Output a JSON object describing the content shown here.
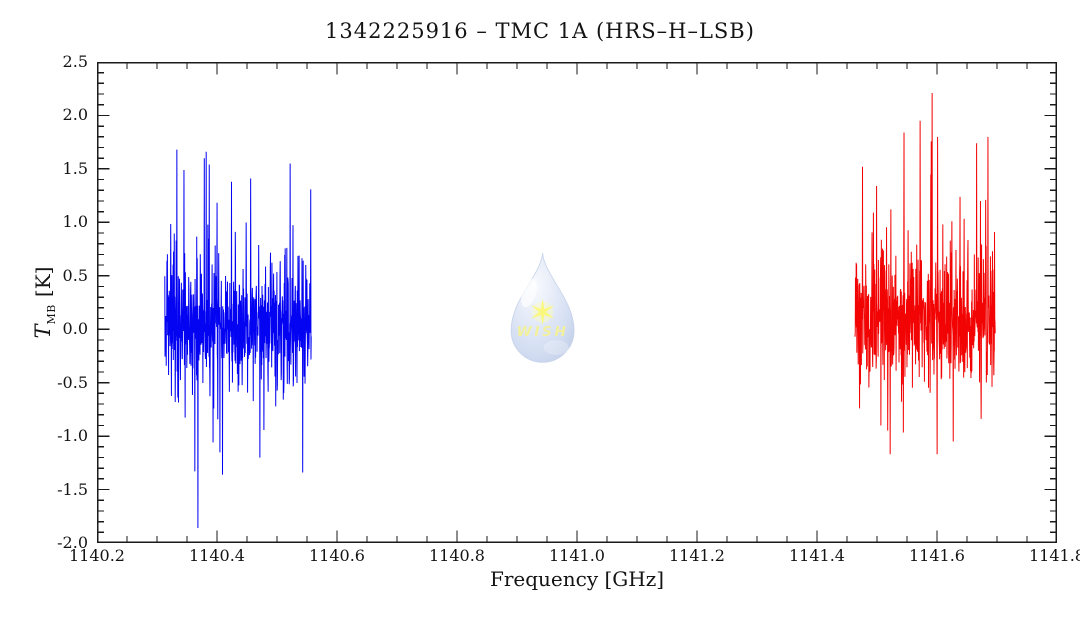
{
  "page": {
    "background": "#ffffff",
    "text_color": "#141414"
  },
  "chart_data": {
    "type": "line",
    "title": "1342225916 – TMC 1A (HRS–H–LSB)",
    "xlabel": "Frequency [GHz]",
    "ylabel": {
      "symbol": "T",
      "subscript": "MB",
      "unit": "[K]"
    },
    "xlim": [
      1140.2,
      1141.8
    ],
    "ylim": [
      -2.0,
      2.5
    ],
    "x_major_step": 0.2,
    "x_minor_step": 0.05,
    "y_major_step": 0.5,
    "y_minor_step": 0.1,
    "x_tick_labels": [
      "1140.2",
      "1140.4",
      "1140.6",
      "1140.8",
      "1141.0",
      "1141.2",
      "1141.4",
      "1141.6",
      "1141.8"
    ],
    "y_tick_labels": [
      "2.5",
      "2.0",
      "1.5",
      "1.0",
      "0.5",
      "0.0",
      "-0.5",
      "-1.0",
      "-1.5",
      "-2.0"
    ],
    "grid": false,
    "legend": null,
    "frame_color": "#1a1a1a",
    "series": [
      {
        "name": "lsb-spectrum-segment-blue",
        "color": "#0404f2",
        "freq_start": 1140.313,
        "freq_end": 1140.557,
        "n_points": 620,
        "mean": 0.05,
        "sigma": 0.28,
        "tail_prob": 0.1,
        "tail_amp": 0.85,
        "pos_fraction": 0.5,
        "seed": 1402,
        "dense_band": [
          -0.6,
          0.7
        ],
        "value_range": [
          -1.87,
          1.68
        ],
        "peaks": [
          {
            "freq": 1140.333,
            "value": 1.68
          },
          {
            "freq": 1140.345,
            "value": 1.49
          },
          {
            "freq": 1140.382,
            "value": 1.66
          },
          {
            "freq": 1140.424,
            "value": 1.38
          },
          {
            "freq": 1140.456,
            "value": 1.41
          },
          {
            "freq": 1140.522,
            "value": 1.55
          },
          {
            "freq": 1140.368,
            "value": -1.86
          },
          {
            "freq": 1140.363,
            "value": -1.33
          },
          {
            "freq": 1140.409,
            "value": -1.36
          },
          {
            "freq": 1140.543,
            "value": -1.34
          }
        ]
      },
      {
        "name": "lsb-spectrum-segment-red",
        "color": "#f20404",
        "freq_start": 1141.463,
        "freq_end": 1141.697,
        "n_points": 620,
        "mean": 0.07,
        "sigma": 0.27,
        "tail_prob": 0.11,
        "tail_amp": 0.9,
        "pos_fraction": 0.62,
        "seed": 9173,
        "dense_band": [
          -0.55,
          0.65
        ],
        "value_range": [
          -1.17,
          2.21
        ],
        "peaks": [
          {
            "freq": 1141.592,
            "value": 2.21
          },
          {
            "freq": 1141.545,
            "value": 1.84
          },
          {
            "freq": 1141.572,
            "value": 1.95
          },
          {
            "freq": 1141.601,
            "value": 1.8
          },
          {
            "freq": 1141.476,
            "value": 1.52
          },
          {
            "freq": 1141.666,
            "value": 1.74
          },
          {
            "freq": 1141.685,
            "value": 1.8
          },
          {
            "freq": 1141.522,
            "value": -1.17
          },
          {
            "freq": 1141.627,
            "value": -1.05
          }
        ]
      }
    ],
    "watermark": {
      "text": "WISH",
      "drop_color": "#a9bfe6",
      "star_color": "#f4f000",
      "text_color": "#e6e23c",
      "opacity": 0.5
    }
  }
}
